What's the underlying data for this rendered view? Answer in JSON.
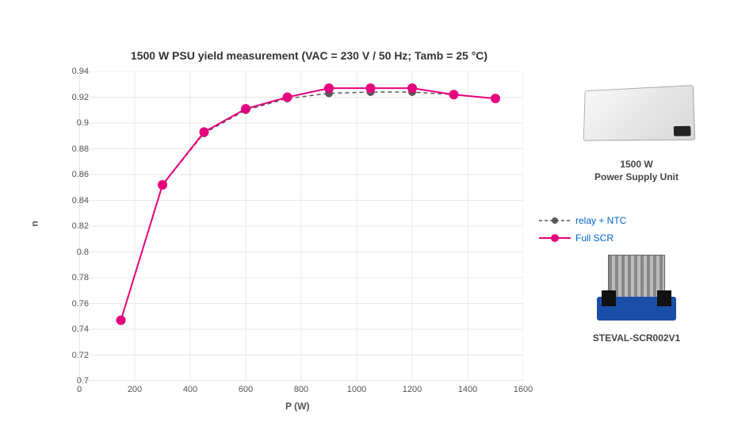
{
  "chart": {
    "type": "line",
    "title": "1500 W PSU yield measurement (VAC = 230 V / 50 Hz; Tamb = 25 °C)",
    "title_fontsize": 14,
    "xlabel": "P (W)",
    "ylabel": "n",
    "label_fontsize": 12,
    "xlim": [
      0,
      1600
    ],
    "ylim": [
      0.7,
      0.94
    ],
    "xticks": [
      0,
      200,
      400,
      600,
      800,
      1000,
      1200,
      1400,
      1600
    ],
    "yticks": [
      0.7,
      0.72,
      0.74,
      0.76,
      0.78,
      0.8,
      0.82,
      0.84,
      0.86,
      0.88,
      0.9,
      0.92,
      0.94
    ],
    "grid_color": "#e8e8e8",
    "axis_color": "#cccccc",
    "background_color": "#ffffff",
    "series": [
      {
        "name": "relay + NTC",
        "color": "#595959",
        "line_style": "dashed",
        "marker": "circle",
        "marker_size": 5,
        "line_width": 1.5,
        "x": [
          150,
          300,
          450,
          600,
          750,
          900,
          1050,
          1200,
          1350,
          1500
        ],
        "y": [
          0.747,
          0.852,
          0.892,
          0.91,
          0.919,
          0.923,
          0.924,
          0.924,
          0.922,
          0.919
        ]
      },
      {
        "name": "Full SCR",
        "color": "#e6007e",
        "line_style": "solid",
        "marker": "circle",
        "marker_size": 6,
        "line_width": 2,
        "x": [
          150,
          300,
          450,
          600,
          750,
          900,
          1050,
          1200,
          1350,
          1500
        ],
        "y": [
          0.747,
          0.852,
          0.893,
          0.911,
          0.92,
          0.927,
          0.927,
          0.927,
          0.922,
          0.919
        ]
      }
    ]
  },
  "legend_text_color": "#0066cc",
  "products": [
    {
      "label_line1": "1500 W",
      "label_line2": "Power Supply Unit"
    },
    {
      "label_line1": "STEVAL-SCR002V1",
      "label_line2": ""
    }
  ]
}
